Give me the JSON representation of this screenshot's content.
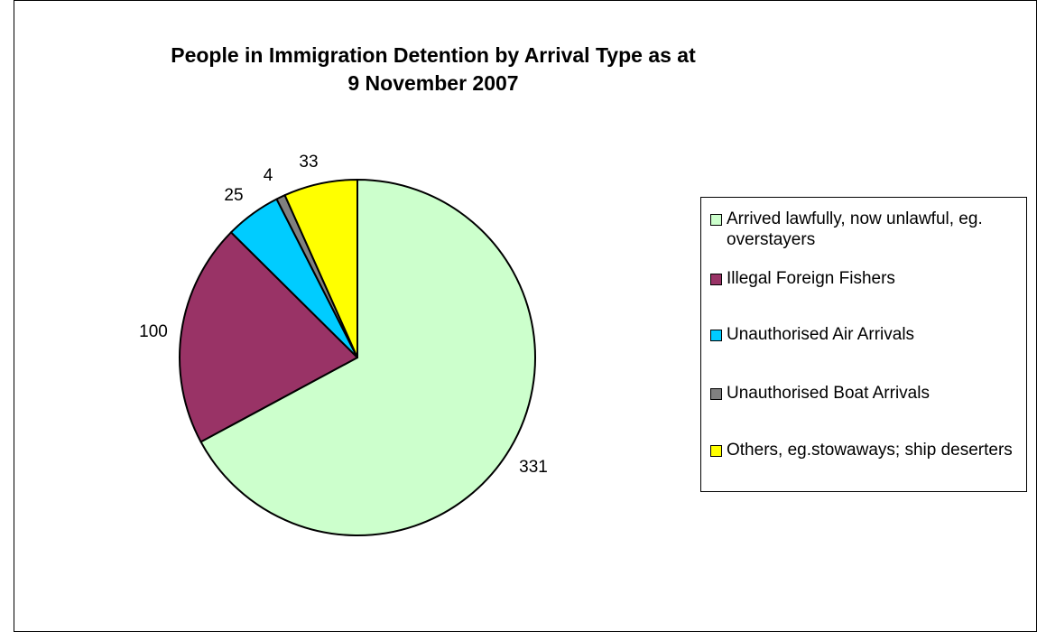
{
  "chart_data": {
    "type": "pie",
    "title_lines": [
      "People in Immigration Detention by Arrival Type as at",
      "9 November 2007"
    ],
    "categories": [
      "Arrived lawfully, now unlawful, eg. overstayers",
      "Illegal Foreign Fishers",
      "Unauthorised Air Arrivals",
      "Unauthorised Boat Arrivals",
      "Others, eg.stowaways; ship deserters"
    ],
    "values": [
      331,
      100,
      25,
      4,
      33
    ],
    "data_labels": [
      "331",
      "100",
      "25",
      "4",
      "33"
    ],
    "colors": [
      "#ccffcc",
      "#993366",
      "#00ccff",
      "#808080",
      "#ffff00"
    ],
    "legend_placement": "right",
    "start_angle": "12 o'clock",
    "direction": "clockwise"
  }
}
